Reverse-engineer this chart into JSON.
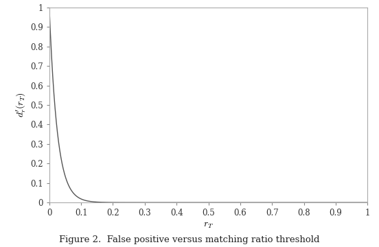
{
  "title": "",
  "xlabel": "$r_T$",
  "ylabel": "$d^\\prime_r(r_T)$",
  "xlim": [
    0,
    1
  ],
  "ylim": [
    0,
    1
  ],
  "xticks": [
    0,
    0.1,
    0.2,
    0.3,
    0.4,
    0.5,
    0.6,
    0.7,
    0.8,
    0.9,
    1.0
  ],
  "yticks": [
    0,
    0.1,
    0.2,
    0.3,
    0.4,
    0.5,
    0.6,
    0.7,
    0.8,
    0.9,
    1.0
  ],
  "xtick_labels": [
    "0",
    "0.1",
    "0.2",
    "0.3",
    "0.4",
    "0.5",
    "0.6",
    "0.7",
    "0.8",
    "0.9",
    "1"
  ],
  "ytick_labels": [
    "0",
    "0.1",
    "0.2",
    "0.3",
    "0.4",
    "0.5",
    "0.6",
    "0.7",
    "0.8",
    "0.9",
    "1"
  ],
  "line_color": "#555555",
  "line_width": 1.0,
  "decay_rate": 40,
  "background_color": "#ffffff",
  "caption": "Figure 2.  False positive versus matching ratio threshold",
  "caption_fontsize": 9.5,
  "xlabel_fontsize": 10,
  "ylabel_fontsize": 10,
  "tick_fontsize": 8.5,
  "spine_color": "#aaaaaa",
  "tick_color": "#888888"
}
